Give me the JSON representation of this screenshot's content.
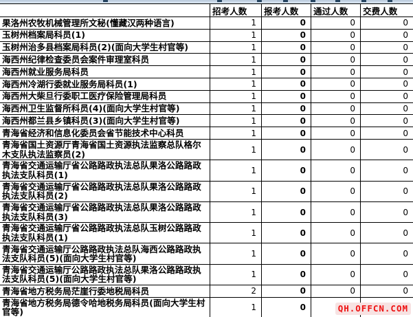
{
  "header": {
    "columns": [
      "招考人数",
      "报考人数",
      "通过人数",
      "交费人数"
    ]
  },
  "watermark": "QH.OFFCN.COM",
  "colors": {
    "border": "#000000",
    "watermark_red": "#ee1111",
    "watermark_bg": "#f7e2e2",
    "top_strip_blue": "#c5d3e3"
  },
  "table": {
    "rows": [
      {
        "title": "果洛州农牧机械管理所文秘(懂藏汉两种语言)",
        "recruit": "1",
        "apply": "0",
        "pass": "0",
        "pay": "0"
      },
      {
        "title": "玉树州档案局科员(1)",
        "recruit": "1",
        "apply": "0",
        "pass": "0",
        "pay": "0"
      },
      {
        "title": "玉树州治多县档案局科员(2)(面向大学生村官等)",
        "recruit": "1",
        "apply": "0",
        "pass": "0",
        "pay": "0"
      },
      {
        "title": "海西州纪律检查委员会案件审理室科员",
        "recruit": "1",
        "apply": "0",
        "pass": "0",
        "pay": "0"
      },
      {
        "title": "海西州就业服务局科员",
        "recruit": "1",
        "apply": "0",
        "pass": "0",
        "pay": "0"
      },
      {
        "title": "海西州冷湖行委就业服务局科员(1)",
        "recruit": "1",
        "apply": "0",
        "pass": "0",
        "pay": "0"
      },
      {
        "title": "海西州大柴旦行委职工医疗保险管理局科员",
        "recruit": "1",
        "apply": "0",
        "pass": "0",
        "pay": "0"
      },
      {
        "title": "海西州卫生监督所科员(4)(面向大学生村官等)",
        "recruit": "1",
        "apply": "0",
        "pass": "0",
        "pay": "0"
      },
      {
        "title": "海西州都兰县乡镇科员(3)(面向大学生村官等)",
        "recruit": "1",
        "apply": "0",
        "pass": "0",
        "pay": "0"
      },
      {
        "title": "青海省经济和信息化委员会省节能技术中心科员",
        "recruit": "1",
        "apply": "0",
        "pass": "0",
        "pay": "0"
      },
      {
        "title": "青海省国土资源厅青海省国土资源执法监察总队格尔木支队执法监察员(2)",
        "recruit": "1",
        "apply": "0",
        "pass": "0",
        "pay": "0"
      },
      {
        "title": "青海省交通运输厅省公路路政执法总队果洛公路路政执法支队科员(1)",
        "recruit": "1",
        "apply": "0",
        "pass": "0",
        "pay": "0"
      },
      {
        "title": "青海省交通运输厅省公路路政执法总队果洛公路路政执法支队科员(2)",
        "recruit": "1",
        "apply": "0",
        "pass": "0",
        "pay": "0"
      },
      {
        "title": "青海省交通运输厅省公路路政执法总队果洛公路路政执法支队科员(3)",
        "recruit": "1",
        "apply": "0",
        "pass": "0",
        "pay": "0"
      },
      {
        "title": "青海省交通运输厅省公路路政执法总队玉树公路路政执法支队科员(1)",
        "recruit": "1",
        "apply": "0",
        "pass": "0",
        "pay": "0"
      },
      {
        "title": "青海省交通运输厅公路路政执法总队海西公路路政执法支队科员(5)(面向大学生村官等)",
        "recruit": "1",
        "apply": "0",
        "pass": "0",
        "pay": "0"
      },
      {
        "title": "青海省交通运输厅公路路政执法总队果洛公路路政执法支队科员(5)(面向大学生村官等)",
        "recruit": "1",
        "apply": "0",
        "pass": "0",
        "pay": "0"
      },
      {
        "title": "青海省地方税务局茫崖行委地税局科员",
        "recruit": "2",
        "apply": "0",
        "pass": "0",
        "pay": "0"
      },
      {
        "title": "青海省地方税务局德令哈地税务局科员(面向大学生村官等)",
        "recruit": "1",
        "apply": "0",
        "pass": "0",
        "pay": "0"
      }
    ]
  }
}
